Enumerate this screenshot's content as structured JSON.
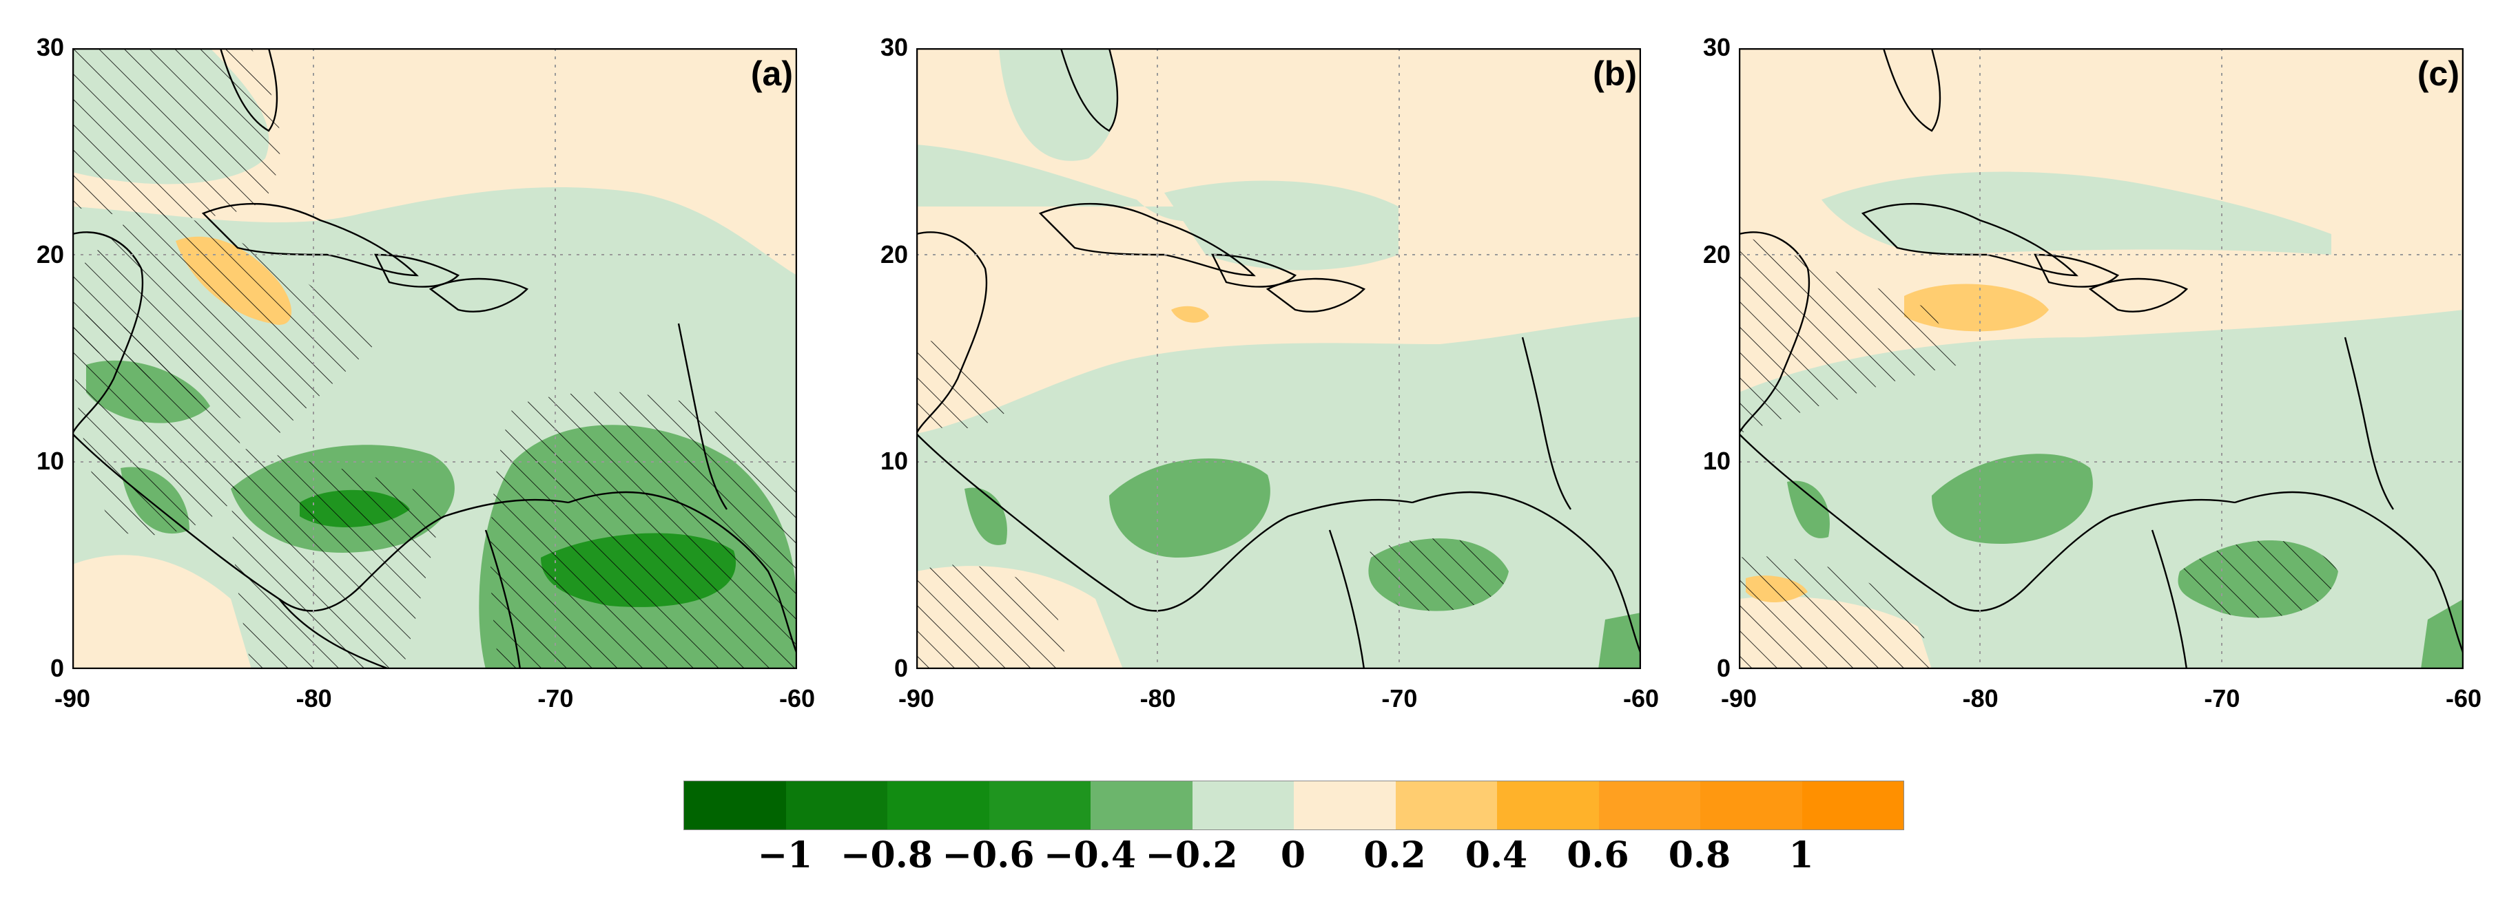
{
  "panels": [
    {
      "id": "a",
      "label": "(a)"
    },
    {
      "id": "b",
      "label": "(b)"
    },
    {
      "id": "c",
      "label": "(c)"
    }
  ],
  "axes": {
    "x_ticks": [
      "-90",
      "-80",
      "-70",
      "-60"
    ],
    "y_ticks": [
      "30",
      "20",
      "10",
      "0"
    ],
    "x_range": [
      -90,
      -60
    ],
    "y_range": [
      0,
      30
    ],
    "grid": "dotted"
  },
  "colorbar": {
    "colors": [
      "#006400",
      "#0b7a0b",
      "#128c12",
      "#1f951f",
      "#6cb56c",
      "#cfe6cf",
      "#fdecd0",
      "#ffcd70",
      "#ffb22a",
      "#ffa020",
      "#ff9810",
      "#ff9000"
    ],
    "labels": [
      "−1",
      "−0.8",
      "−0.6",
      "−0.4",
      "−0.2",
      "0",
      "0.2",
      "0.4",
      "0.6",
      "0.8",
      "1"
    ]
  },
  "legend": {
    "colors": {
      "ocean_base": "#fdecd0",
      "light_negative": "#cfe6cf",
      "medium_negative": "#6cb56c",
      "strong_negative": "#1f951f",
      "positive": "#ffcd70",
      "coastline": "#000000"
    }
  }
}
